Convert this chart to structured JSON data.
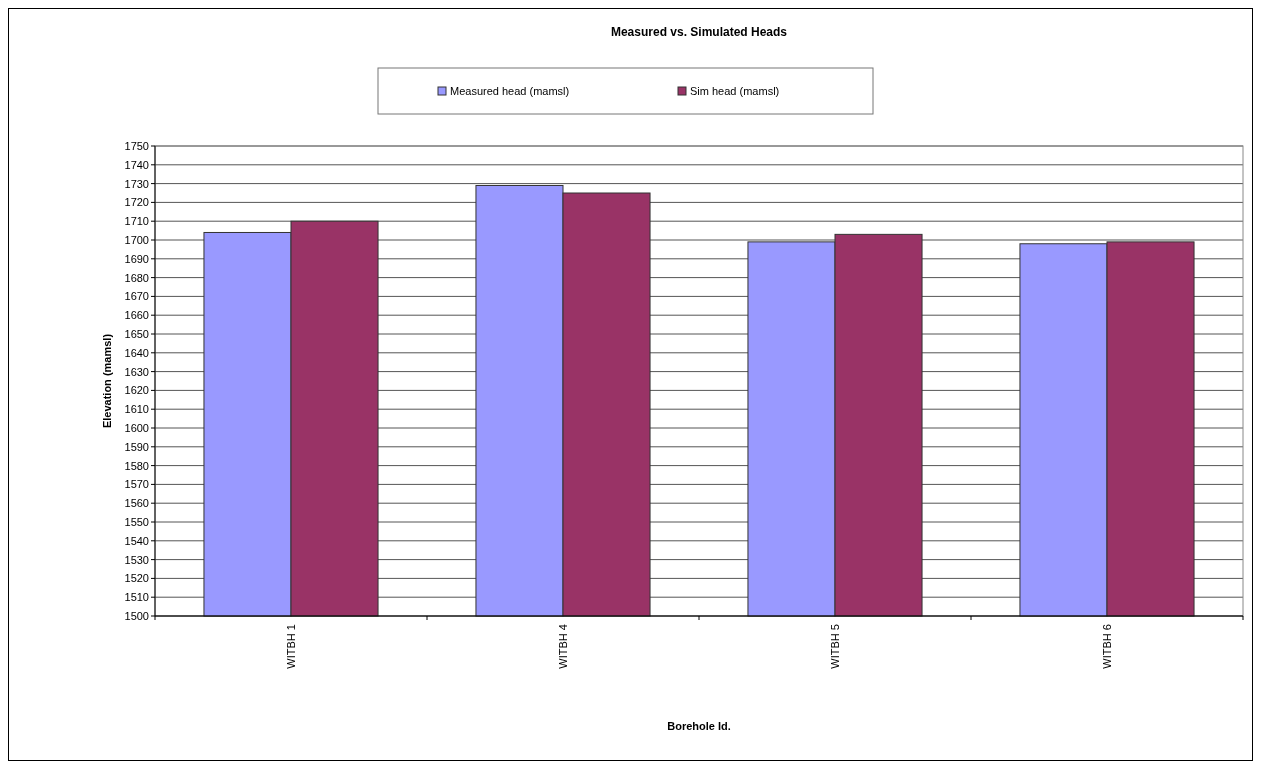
{
  "chart_data": {
    "type": "bar",
    "title": "Measured vs. Simulated Heads",
    "xlabel": "Borehole Id.",
    "ylabel": "Elevation (mamsl)",
    "categories": [
      "WITBH 1",
      "WITBH 4",
      "WITBH 5",
      "WITBH 6"
    ],
    "series": [
      {
        "name": "Measured head (mamsl)",
        "color": "#9999ff",
        "values": [
          1704,
          1729,
          1699,
          1698
        ]
      },
      {
        "name": "Sim head (mamsl)",
        "color": "#993366",
        "values": [
          1710,
          1725,
          1703,
          1699
        ]
      }
    ],
    "ylim": [
      1500,
      1750
    ],
    "yticks": [
      1500,
      1510,
      1520,
      1530,
      1540,
      1550,
      1560,
      1570,
      1580,
      1590,
      1600,
      1610,
      1620,
      1630,
      1640,
      1650,
      1660,
      1670,
      1680,
      1690,
      1700,
      1710,
      1720,
      1730,
      1740,
      1750
    ],
    "grid": "y",
    "legend": "top"
  }
}
